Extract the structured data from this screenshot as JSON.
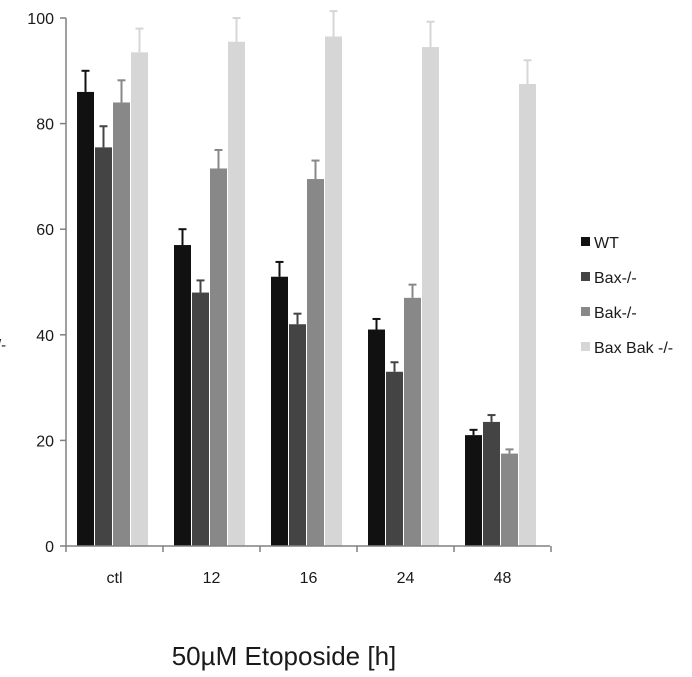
{
  "chart_data": {
    "type": "bar",
    "title": "",
    "xlabel": "50µM Etoposide [h]",
    "ylabel": "-/-",
    "ylim": [
      0,
      100
    ],
    "yticks": [
      0,
      20,
      40,
      60,
      80,
      100
    ],
    "categories": [
      "ctl",
      "12",
      "16",
      "24",
      "48"
    ],
    "series": [
      {
        "name": "WT",
        "color": "#111111",
        "values": [
          86,
          57,
          51,
          41,
          21
        ],
        "errors": [
          4,
          3,
          2.8,
          2,
          1
        ]
      },
      {
        "name": "Bax-/-",
        "color": "#444444",
        "values": [
          75.5,
          48,
          42,
          33,
          23.5
        ],
        "errors": [
          4,
          2.3,
          2,
          1.8,
          1.3
        ]
      },
      {
        "name": "Bak-/-",
        "color": "#888888",
        "values": [
          84,
          71.5,
          69.5,
          47,
          17.5
        ],
        "errors": [
          4.2,
          3.5,
          3.5,
          2.5,
          0.8
        ]
      },
      {
        "name": "Bax Bak -/-",
        "color": "#d6d6d6",
        "values": [
          93.5,
          95.5,
          96.5,
          94.5,
          87.5
        ],
        "errors": [
          4.5,
          4.5,
          4.8,
          4.8,
          4.5
        ]
      }
    ],
    "legend_position": "right",
    "grid": false,
    "error_bars": "upper"
  }
}
